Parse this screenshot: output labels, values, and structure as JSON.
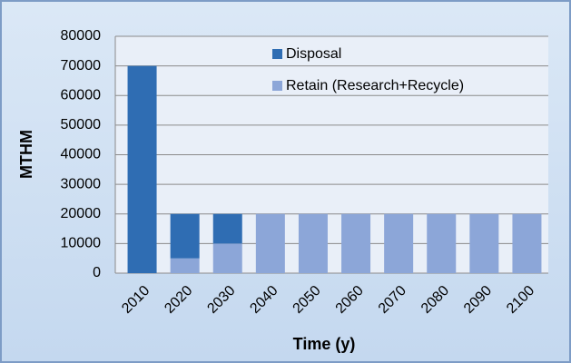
{
  "chart_data": {
    "type": "stacked-bar",
    "y_label": "MTHM",
    "x_label": "Time (y)",
    "categories": [
      "2010",
      "2020",
      "2030",
      "2040",
      "2050",
      "2060",
      "2070",
      "2080",
      "2090",
      "2100"
    ],
    "series": [
      {
        "name": "Retain (Research+Recycle)",
        "color": "#8ca6d8",
        "values": [
          0,
          5000,
          10000,
          20000,
          20000,
          20000,
          20000,
          20000,
          20000,
          20000
        ]
      },
      {
        "name": "Disposal",
        "color": "#2f6db3",
        "values": [
          70000,
          15000,
          10000,
          0,
          0,
          0,
          0,
          0,
          0,
          0
        ]
      }
    ],
    "legend_order": [
      1,
      0
    ],
    "ylim": [
      0,
      80000
    ],
    "yticks": [
      0,
      10000,
      20000,
      30000,
      40000,
      50000,
      60000,
      70000,
      80000
    ],
    "grid": true
  }
}
